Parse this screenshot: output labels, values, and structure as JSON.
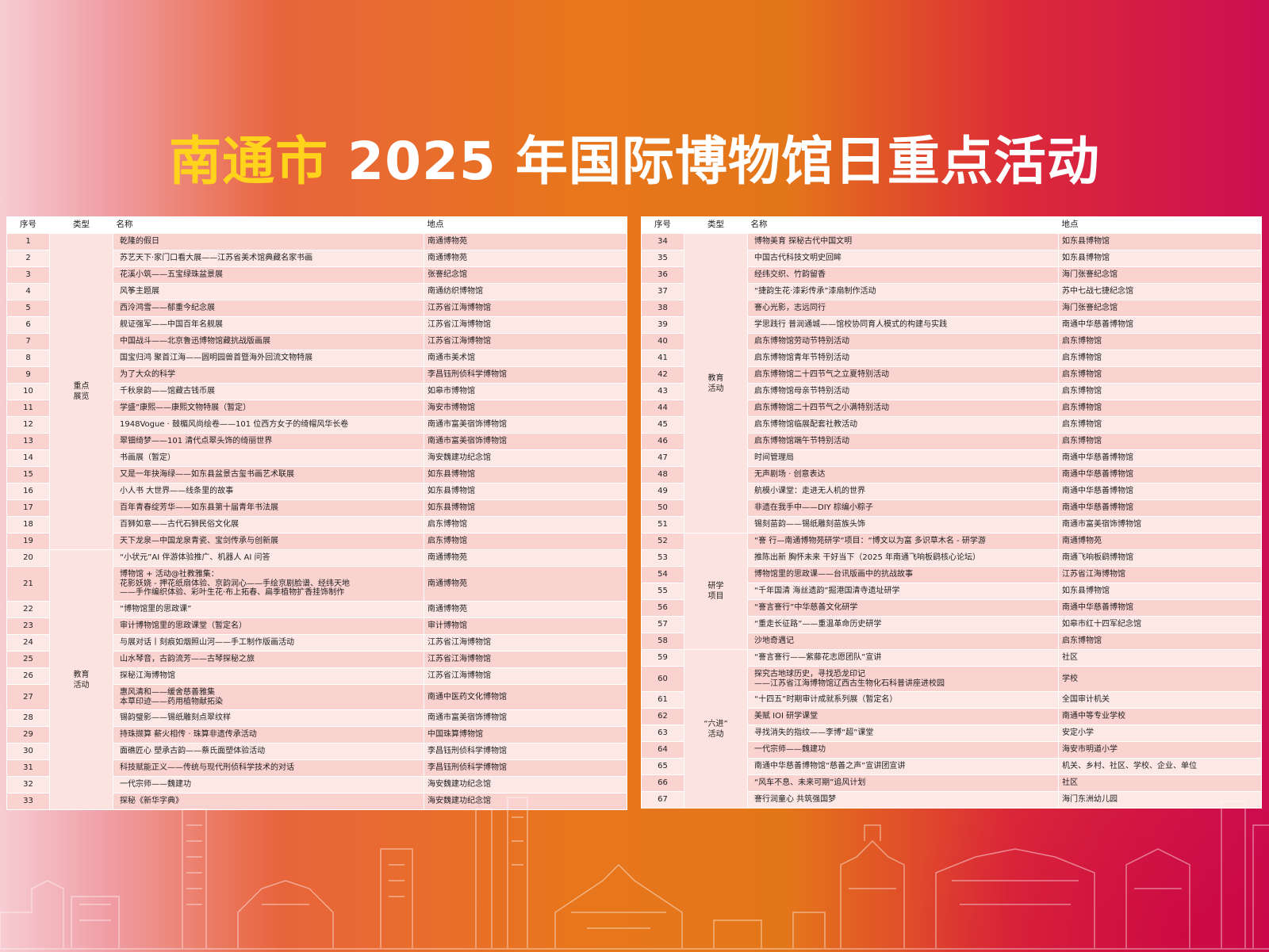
{
  "title": {
    "highlight": "南通市",
    "rest": " 2025 年国际博物馆日重点活动"
  },
  "headers": {
    "no": "序号",
    "type": "类型",
    "name": "名称",
    "place": "地点"
  },
  "left_table": [
    {
      "no": "1",
      "type": "重点\n展览",
      "span": 19,
      "name": "乾隆的假日",
      "place": "南通博物苑"
    },
    {
      "no": "2",
      "name": "苏艺天下·家门口看大展——江苏省美术馆典藏名家书画",
      "place": "南通博物苑"
    },
    {
      "no": "3",
      "name": "花溪小筑——五宝绿珠盆景展",
      "place": "张謇纪念馆"
    },
    {
      "no": "4",
      "name": "风筝主题展",
      "place": "南通纺织博物馆"
    },
    {
      "no": "5",
      "name": "西泠鸿雪——郁重今纪念展",
      "place": "江苏省江海博物馆"
    },
    {
      "no": "6",
      "name": "舰证强军——中国百年名舰展",
      "place": "江苏省江海博物馆"
    },
    {
      "no": "7",
      "name": "中国战斗——北京鲁迅博物馆藏抗战版画展",
      "place": "江苏省江海博物馆"
    },
    {
      "no": "8",
      "name": "国宝归鸿 聚首江海——圆明园兽首暨海外回流文物特展",
      "place": "南通市美术馆"
    },
    {
      "no": "9",
      "name": "为了大众的科学",
      "place": "李昌钰刑侦科学博物馆"
    },
    {
      "no": "10",
      "name": "千秋泉韵——馆藏古钱币展",
      "place": "如皋市博物馆"
    },
    {
      "no": "11",
      "name": "学盛”康熙——康熙文物特展（暂定）",
      "place": "海安市博物馆"
    },
    {
      "no": "12",
      "name": "1948Vogue · 鼓楣风尚绘卷——101 位西方女子的绮帽风华长卷",
      "place": "南通市富美宿饰博物馆"
    },
    {
      "no": "13",
      "name": "翠钿绮梦——101 清代点翠头饰的绮丽世界",
      "place": "南通市富美宿饰博物馆"
    },
    {
      "no": "14",
      "name": "书画展（暂定）",
      "place": "海安魏建功纪念馆"
    },
    {
      "no": "15",
      "name": "又是一年抉海绿——如东县盆景古玺书画艺术联展",
      "place": "如东县博物馆"
    },
    {
      "no": "16",
      "name": "小人书 大世界——线条里的故事",
      "place": "如东县博物馆"
    },
    {
      "no": "17",
      "name": "百年青春绽芳华——如东县第十届青年书法展",
      "place": "如东县博物馆"
    },
    {
      "no": "18",
      "name": "百狮如意——古代石狮民俗文化展",
      "place": "启东博物馆"
    },
    {
      "no": "19",
      "name": "天下龙泉—中国龙泉青瓷、宝剑传承与创新展",
      "place": "启东博物馆"
    },
    {
      "no": "20",
      "type": "教育\n活动",
      "span": 14,
      "name": "“小状元”AI 伴游体验推广、机器人 AI 问答",
      "place": "南通博物苑"
    },
    {
      "no": "21",
      "name": "博物馆 + 活动@社教雅集：\n花影妖娆 - 押花纸扇体验、京韵润心——手绘京剧脸谱、经纬天地\n——手作编织体验、彩叶生花·布上拓春、扁季植物扩香挂饰制作",
      "place": "南通博物苑"
    },
    {
      "no": "22",
      "name": "“博物馆里的思政课”",
      "place": "南通博物苑"
    },
    {
      "no": "23",
      "name": "审计博物馆里的思政课堂（暂定名）",
      "place": "审计博物馆"
    },
    {
      "no": "24",
      "name": "与展对话丨刻痕如烟照山河——手工制作版画活动",
      "place": "江苏省江海博物馆"
    },
    {
      "no": "25",
      "name": "山水琴音，古韵流芳——古琴探秘之旅",
      "place": "江苏省江海博物馆"
    },
    {
      "no": "26",
      "name": "探秘江海博物馆",
      "place": "江苏省江海博物馆"
    },
    {
      "no": "27",
      "name": "惠风清和——缓舍慈善雅集\n本草印迹——药用植物献拓染",
      "place": "南通中医药文化博物馆"
    },
    {
      "no": "28",
      "name": "锡韵璧影——锡纸雕刻点翠纹样",
      "place": "南通市富美宿饰博物馆"
    },
    {
      "no": "29",
      "name": "持珠撷算 薪火相传 · 珠算非遗传承活动",
      "place": "中国珠算博物馆"
    },
    {
      "no": "30",
      "name": "面礁匠心 塑承古韵——蔡氏面塑体验活动",
      "place": "李昌钰刑侦科学博物馆"
    },
    {
      "no": "31",
      "name": "科技赋能正义——传统与现代刑侦科学技术的对话",
      "place": "李昌钰刑侦科学博物馆"
    },
    {
      "no": "32",
      "name": "一代宗师——魏建功",
      "place": "海安魏建功纪念馆"
    },
    {
      "no": "33",
      "name": "探秘《新华字典》",
      "place": "海安魏建功纪念馆"
    }
  ],
  "right_table": [
    {
      "no": "34",
      "type": "教育\n活动",
      "span": 18,
      "name": "博物美育 探秘古代中国文明",
      "place": "如东县博物馆"
    },
    {
      "no": "35",
      "name": "中国古代科技文明史回眸",
      "place": "如东县博物馆"
    },
    {
      "no": "36",
      "name": "经纬交织、竹韵留香",
      "place": "海门张謇纪念馆"
    },
    {
      "no": "37",
      "name": "“捷韵生花·漆彩传承”漆扇制作活动",
      "place": "苏中七战七捷纪念馆"
    },
    {
      "no": "38",
      "name": "謇心光影，志远同行",
      "place": "海门张謇纪念馆"
    },
    {
      "no": "39",
      "name": "学思践行 普润通城——馆校协同育人模式的构建与实践",
      "place": "南通中华慈善博物馆"
    },
    {
      "no": "40",
      "name": "启东博物馆劳动节特别活动",
      "place": "启东博物馆"
    },
    {
      "no": "41",
      "name": "启东博物馆青年节特别活动",
      "place": "启东博物馆"
    },
    {
      "no": "42",
      "name": "启东博物馆二十四节气之立夏特别活动",
      "place": "启东博物馆"
    },
    {
      "no": "43",
      "name": "启东博物馆母亲节特别活动",
      "place": "启东博物馆"
    },
    {
      "no": "44",
      "name": "启东博物馆二十四节气之小满特别活动",
      "place": "启东博物馆"
    },
    {
      "no": "45",
      "name": "启东博物馆临展配套社教活动",
      "place": "启东博物馆"
    },
    {
      "no": "46",
      "name": "启东博物馆端午节特别活动",
      "place": "启东博物馆"
    },
    {
      "no": "47",
      "name": "时间管理局",
      "place": "南通中华慈善博物馆"
    },
    {
      "no": "48",
      "name": "无声剧场 · 创意表达",
      "place": "南通中华慈善博物馆"
    },
    {
      "no": "49",
      "name": "航模小课堂：走进无人机的世界",
      "place": "南通中华慈善博物馆"
    },
    {
      "no": "50",
      "name": "非遗在我手中——DIY 棕编小粽子",
      "place": "南通中华慈善博物馆"
    },
    {
      "no": "51",
      "name": "锡刻苗韵——锡纸雕刻苗族头饰",
      "place": "南通市富美宿饰博物馆"
    },
    {
      "no": "52",
      "type": "研学\n项目",
      "span": 7,
      "name": "“謇 行—南通博物苑研学“项目：“博文以为富 多识草木名 - 研学游",
      "place": "南通博物苑"
    },
    {
      "no": "53",
      "name": "推陈出新 胸怀未来 干好当下（2025 年南通飞响板鹞核心论坛）",
      "place": "南通飞响板鹞博物馆"
    },
    {
      "no": "54",
      "name": "博物馆里的思政课——台讯版画中的抗战故事",
      "place": "江苏省江海博物馆"
    },
    {
      "no": "55",
      "name": "“千年国清 海丝遗韵”掘港国清寺遗址研学",
      "place": "如东县博物馆"
    },
    {
      "no": "56",
      "name": "“謇言謇行”中华慈善文化研学",
      "place": "南通中华慈善博物馆"
    },
    {
      "no": "57",
      "name": "“重走长征路”——重温革命历史研学",
      "place": "如皋市红十四军纪念馆"
    },
    {
      "no": "58",
      "name": "沙地奇遇记",
      "place": "启东博物馆"
    },
    {
      "no": "59",
      "type": "“六进”\n活动",
      "span": 9,
      "name": "“謇言謇行——紫藤花志愿团队”宣讲",
      "place": "社区"
    },
    {
      "no": "60",
      "name": "探究古地球历史，寻找恐龙印记\n——江苏省江海博物馆辽西古生物化石科普讲座进校园",
      "place": "学校"
    },
    {
      "no": "61",
      "name": "“十四五”时期审计成就系列展（暂定名）",
      "place": "全国审计机关"
    },
    {
      "no": "62",
      "name": "美赋 IOI 研学课堂",
      "place": "南通中等专业学校"
    },
    {
      "no": "63",
      "name": "寻找消失的指纹——李博“超”课堂",
      "place": "安定小学"
    },
    {
      "no": "64",
      "name": "一代宗师——魏建功",
      "place": "海安市明道小学"
    },
    {
      "no": "65",
      "name": "南通中华慈善博物馆“慈善之声”宣讲团宣讲",
      "place": "机关、乡村、社区、学校、企业、单位"
    },
    {
      "no": "66",
      "name": "“风车不息、未来可期”追风计划",
      "place": "社区"
    },
    {
      "no": "67",
      "name": "謇行润童心 共筑强国梦",
      "place": "海门东洲幼儿园"
    }
  ]
}
